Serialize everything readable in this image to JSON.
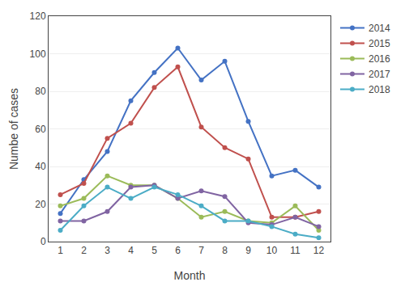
{
  "chart_data": {
    "type": "line",
    "x": [
      1,
      2,
      3,
      4,
      5,
      6,
      7,
      8,
      9,
      10,
      11,
      12
    ],
    "series": [
      {
        "name": "2014",
        "color": "#4472C4",
        "values": [
          15,
          33,
          48,
          75,
          90,
          103,
          86,
          96,
          64,
          35,
          38,
          29
        ]
      },
      {
        "name": "2015",
        "color": "#C0504D",
        "values": [
          25,
          31,
          55,
          63,
          82,
          93,
          61,
          50,
          44,
          13,
          13,
          16
        ]
      },
      {
        "name": "2016",
        "color": "#9BBB59",
        "values": [
          19,
          23,
          35,
          30,
          30,
          23,
          13,
          16,
          11,
          10,
          19,
          6
        ]
      },
      {
        "name": "2017",
        "color": "#8064A2",
        "values": [
          11,
          11,
          16,
          29,
          30,
          23,
          27,
          24,
          10,
          9,
          13,
          8
        ]
      },
      {
        "name": "2018",
        "color": "#4BACC6",
        "values": [
          6,
          19,
          29,
          23,
          29,
          25,
          19,
          11,
          11,
          8,
          4,
          2
        ]
      }
    ],
    "xlabel": "Month",
    "ylabel": "Numbe of cases",
    "xlim": [
      0.5,
      12.5
    ],
    "xticks": [
      1,
      2,
      3,
      4,
      5,
      6,
      7,
      8,
      9,
      10,
      11,
      12
    ],
    "ylim": [
      0,
      120
    ],
    "yticks": [
      0,
      20,
      40,
      60,
      80,
      100,
      120
    ],
    "grid": true,
    "legend": "upper right",
    "marker": "circle",
    "line_style": "solid"
  }
}
